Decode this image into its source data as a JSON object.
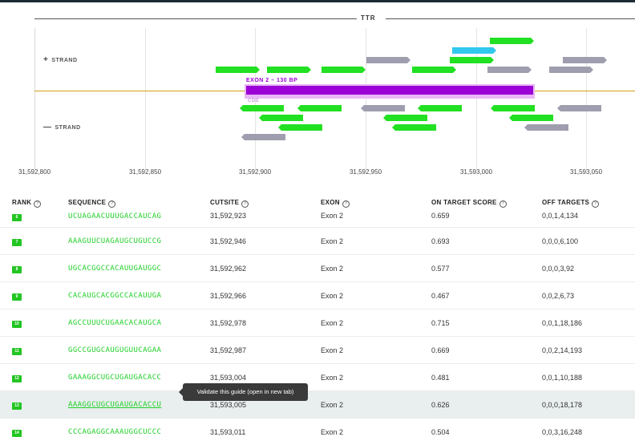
{
  "gene": {
    "name": "TTR"
  },
  "strands": {
    "plus_symbol": "+",
    "plus_label": "STRAND",
    "minus_symbol": "—",
    "minus_label": "STRAND"
  },
  "exon": {
    "label": "EXON 2 – 130 BP",
    "cds_label": "CDS"
  },
  "axis_ticks": [
    "31,592,800",
    "31,592,850",
    "31,592,900",
    "31,592,950",
    "31,593,000",
    "31,593,050"
  ],
  "colors": {
    "guide_green": "#22e022",
    "guide_gray": "#9e9eaf",
    "guide_blue": "#31c8ee",
    "exon_purple": "#9b00d6",
    "axis_orange": "#d4a017"
  },
  "table": {
    "headers": [
      "RANK",
      "SEQUENCE",
      "CUTSITE",
      "EXON",
      "ON TARGET SCORE",
      "OFF TARGETS"
    ],
    "rows": [
      {
        "rank": "6",
        "sequence": "UCUAGAACUUUGACCAUCAG",
        "cutsite": "31,592,923",
        "exon": "Exon 2",
        "score": "0.659",
        "off_targets": "0,0,1,4,134"
      },
      {
        "rank": "7",
        "sequence": "AAAGUUCUAGAUGCUGUCCG",
        "cutsite": "31,592,946",
        "exon": "Exon 2",
        "score": "0.693",
        "off_targets": "0,0,0,6,100"
      },
      {
        "rank": "8",
        "sequence": "UGCACGGCCACAUUGAUGGC",
        "cutsite": "31,592,962",
        "exon": "Exon 2",
        "score": "0.577",
        "off_targets": "0,0,0,3,92"
      },
      {
        "rank": "9",
        "sequence": "CACAUGCACGGCCACAUUGA",
        "cutsite": "31,592,966",
        "exon": "Exon 2",
        "score": "0.467",
        "off_targets": "0,0,2,6,73"
      },
      {
        "rank": "10",
        "sequence": "AGCCUUUCUGAACACAUGCA",
        "cutsite": "31,592,978",
        "exon": "Exon 2",
        "score": "0.715",
        "off_targets": "0,0,1,18,186"
      },
      {
        "rank": "11",
        "sequence": "GGCCGUGCAUGUGUUCAGAA",
        "cutsite": "31,592,987",
        "exon": "Exon 2",
        "score": "0.669",
        "off_targets": "0,0,2,14,193"
      },
      {
        "rank": "12",
        "sequence": "GAAAGGCUGCUGAUGACACC",
        "cutsite": "31,593,004",
        "exon": "Exon 2",
        "score": "0.481",
        "off_targets": "0,0,1,10,188"
      },
      {
        "rank": "13",
        "sequence": "AAAGGCUGCUGAUGACACCU",
        "cutsite": "31,593,005",
        "exon": "Exon 2",
        "score": "0.626",
        "off_targets": "0,0,0,18,178"
      },
      {
        "rank": "14",
        "sequence": "CCCAGAGGCAAAUGGCUCCC",
        "cutsite": "31,593,011",
        "exon": "Exon 2",
        "score": "0.504",
        "off_targets": "0,0,3,16,248"
      }
    ]
  },
  "tooltip": {
    "text": "Validate this guide (open in new tab)"
  }
}
